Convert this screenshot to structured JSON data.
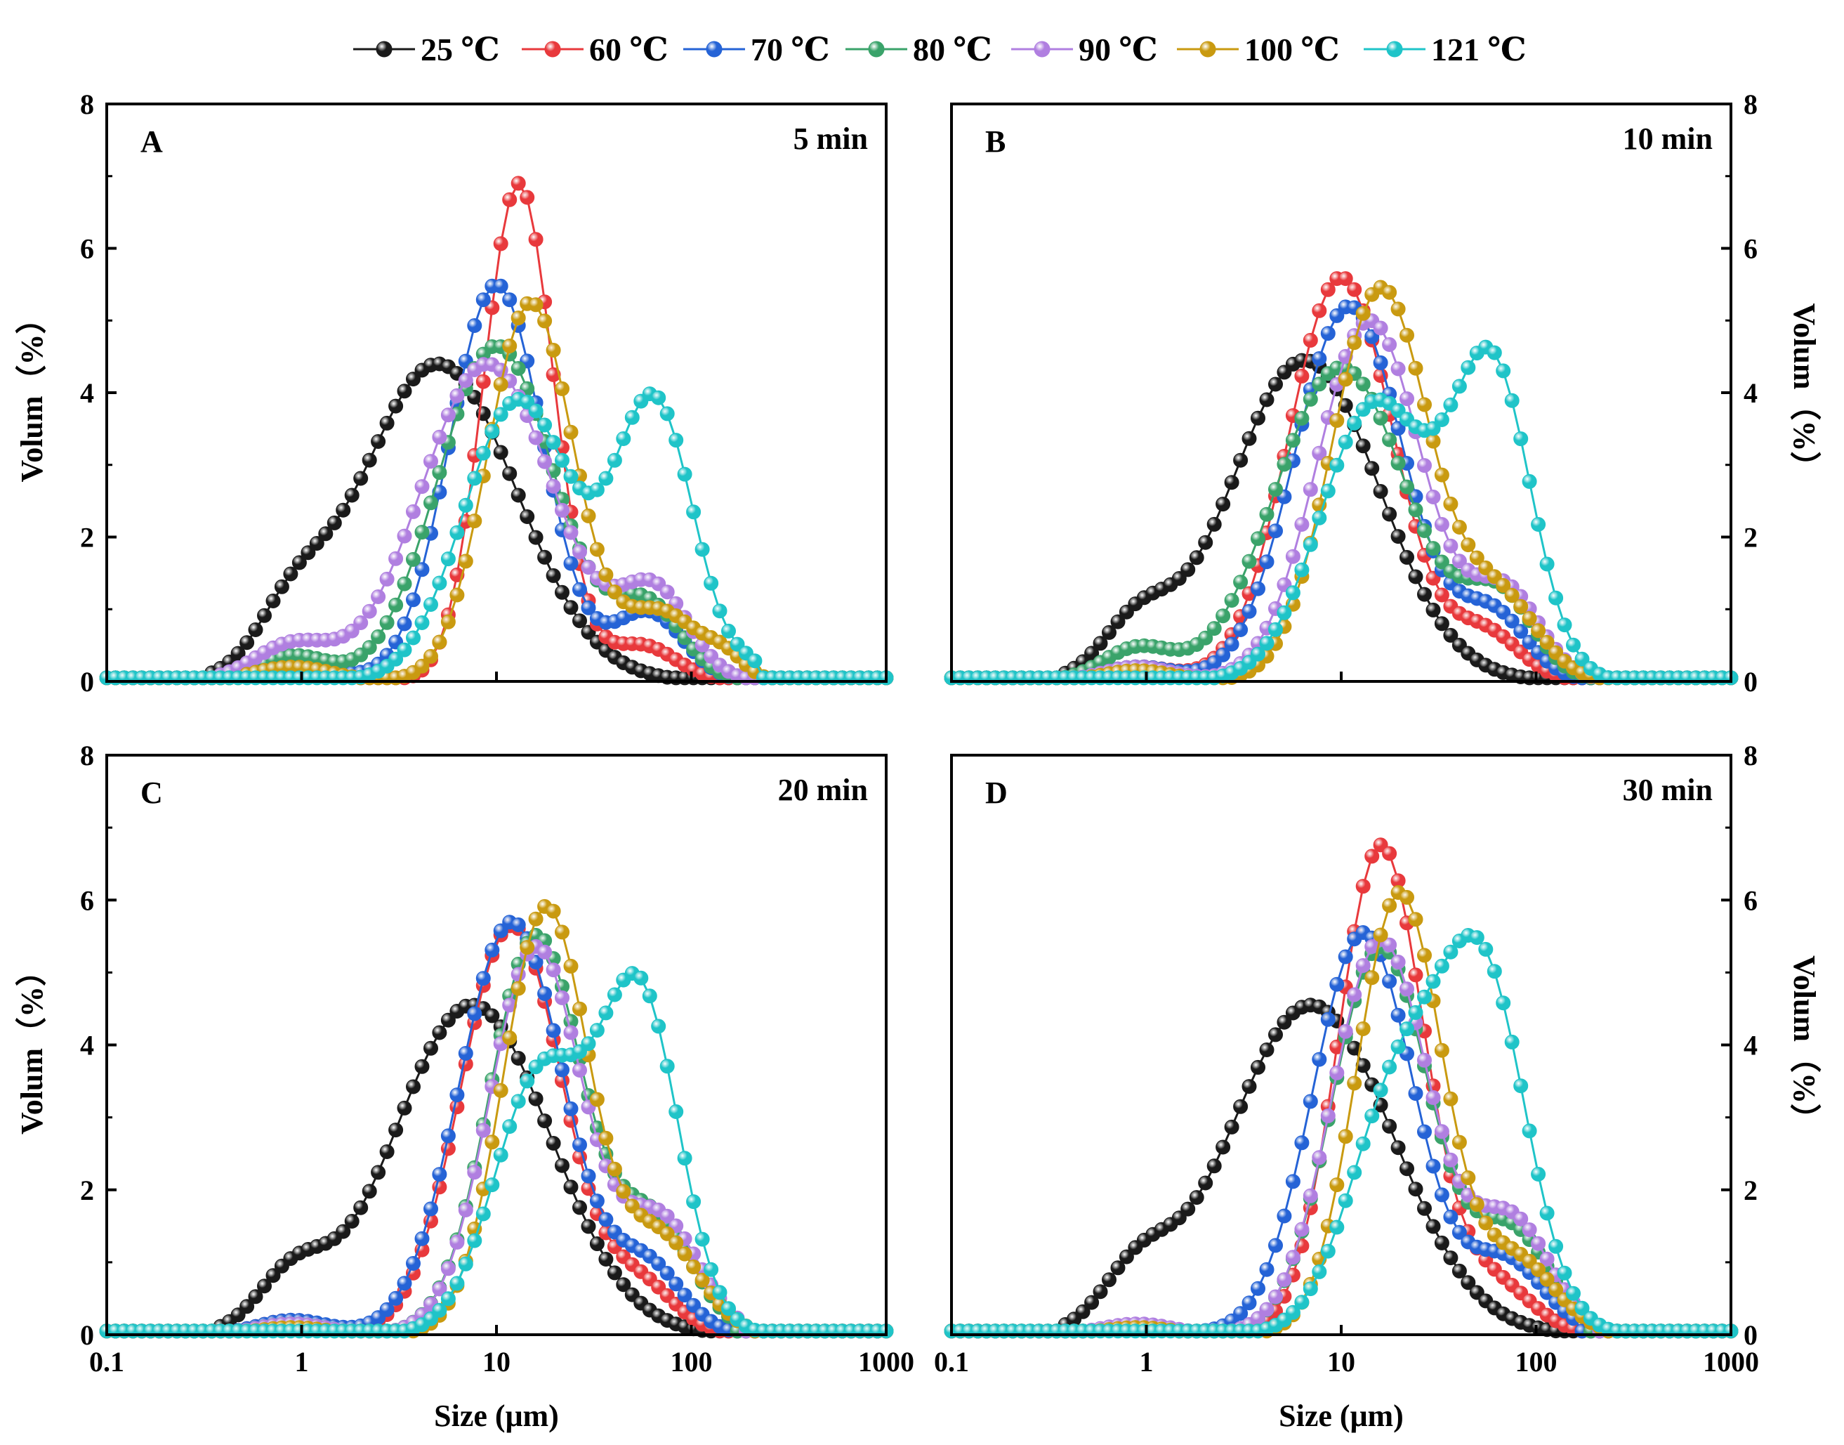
{
  "series_meta": [
    {
      "name": "25 ℃",
      "color": "#1a1a1a"
    },
    {
      "name": "60 ℃",
      "color": "#e8393c"
    },
    {
      "name": "70 ℃",
      "color": "#2563d6"
    },
    {
      "name": "80 ℃",
      "color": "#3aa36a"
    },
    {
      "name": "90 ℃",
      "color": "#b07fe0"
    },
    {
      "name": "100 ℃",
      "color": "#c99a10"
    },
    {
      "name": "121 ℃",
      "color": "#1fc4c8"
    }
  ],
  "chart_data": [
    {
      "type": "line",
      "panel": "A",
      "time_label": "5 min",
      "xlabel": "",
      "ylabel": "Volum（%）",
      "xscale": "log",
      "xlim": [
        0.1,
        1000
      ],
      "ylim": [
        0,
        8
      ],
      "x_ticks": [],
      "y_ticks": [
        "0",
        "2",
        "4",
        "6",
        "8"
      ],
      "y_axis_side": "left",
      "series": [
        {
          "name": "25 ℃",
          "peaks": [
            [
              0.9,
              0.75,
              0.18
            ],
            [
              5.0,
              4.4,
              0.4
            ]
          ],
          "min": 0.33,
          "max": 130
        },
        {
          "name": "60 ℃",
          "peaks": [
            [
              0.9,
              0.25,
              0.18
            ],
            [
              13.0,
              6.9,
              0.18
            ],
            [
              55,
              0.5,
              0.18
            ]
          ],
          "min": 0.45,
          "max": 130
        },
        {
          "name": "70 ℃",
          "peaks": [
            [
              0.9,
              0.3,
              0.18
            ],
            [
              10.0,
              5.5,
              0.24
            ],
            [
              60,
              0.95,
              0.18
            ]
          ],
          "min": 0.45,
          "max": 160
        },
        {
          "name": "80 ℃",
          "peaks": [
            [
              0.9,
              0.35,
              0.18
            ],
            [
              10.0,
              4.65,
              0.3
            ],
            [
              60,
              1.0,
              0.18
            ]
          ],
          "min": 0.45,
          "max": 160
        },
        {
          "name": "90 ℃",
          "peaks": [
            [
              0.9,
              0.5,
              0.2
            ],
            [
              9.0,
              4.4,
              0.34
            ],
            [
              65,
              1.2,
              0.18
            ]
          ],
          "min": 0.38,
          "max": 180
        },
        {
          "name": "100 ℃",
          "peaks": [
            [
              0.9,
              0.2,
              0.2
            ],
            [
              15.0,
              5.25,
              0.22
            ],
            [
              70,
              0.95,
              0.2
            ],
            [
              150,
              0.25,
              0.1
            ]
          ],
          "min": 0.5,
          "max": 320
        },
        {
          "name": "121 ℃",
          "peaks": [
            [
              13.0,
              3.9,
              0.28
            ],
            [
              65,
              3.8,
              0.2
            ],
            [
              200,
              0.15,
              0.08
            ]
          ],
          "min": 1.3,
          "max": 220
        }
      ]
    },
    {
      "type": "line",
      "panel": "B",
      "time_label": "10 min",
      "xlabel": "",
      "ylabel": "Volum（%）",
      "xscale": "log",
      "xlim": [
        0.1,
        1000
      ],
      "ylim": [
        0,
        8
      ],
      "x_ticks": [],
      "y_ticks": [
        "0",
        "2",
        "4",
        "6",
        "8"
      ],
      "y_axis_side": "right",
      "series": [
        {
          "name": "25 ℃",
          "peaks": [
            [
              0.9,
              0.75,
              0.18
            ],
            [
              6.5,
              4.45,
              0.38
            ]
          ],
          "min": 0.35,
          "max": 115
        },
        {
          "name": "60 ℃",
          "peaks": [
            [
              0.9,
              0.2,
              0.18
            ],
            [
              10.0,
              5.6,
              0.27
            ],
            [
              55,
              0.65,
              0.18
            ]
          ],
          "min": 0.45,
          "max": 140
        },
        {
          "name": "70 ℃",
          "peaks": [
            [
              0.9,
              0.2,
              0.18
            ],
            [
              11.0,
              5.2,
              0.28
            ],
            [
              60,
              0.9,
              0.18
            ]
          ],
          "min": 0.45,
          "max": 170
        },
        {
          "name": "80 ℃",
          "peaks": [
            [
              0.9,
              0.45,
              0.18
            ],
            [
              10.0,
              4.35,
              0.34
            ],
            [
              65,
              1.1,
              0.18
            ]
          ],
          "min": 0.38,
          "max": 190
        },
        {
          "name": "90 ℃",
          "peaks": [
            [
              0.9,
              0.2,
              0.18
            ],
            [
              14.0,
              5.0,
              0.27
            ],
            [
              70,
              1.2,
              0.18
            ]
          ],
          "min": 0.45,
          "max": 210
        },
        {
          "name": "100 ℃",
          "peaks": [
            [
              0.9,
              0.15,
              0.18
            ],
            [
              16.0,
              5.45,
              0.25
            ],
            [
              65,
              1.1,
              0.2
            ]
          ],
          "min": 0.5,
          "max": 240
        },
        {
          "name": "121 ℃",
          "peaks": [
            [
              15.0,
              3.85,
              0.28
            ],
            [
              60,
              4.2,
              0.2
            ]
          ],
          "min": 1.3,
          "max": 240
        }
      ]
    },
    {
      "type": "line",
      "panel": "C",
      "time_label": "20 min",
      "xlabel": "Size (μm)",
      "ylabel": "Volum（%）",
      "xscale": "log",
      "xlim": [
        0.1,
        1000
      ],
      "ylim": [
        0,
        8
      ],
      "x_ticks": [
        "0.1",
        "1",
        "10",
        "100",
        "1000"
      ],
      "y_ticks": [
        "0",
        "2",
        "4",
        "6",
        "8"
      ],
      "y_axis_side": "left",
      "series": [
        {
          "name": "25 ℃",
          "peaks": [
            [
              0.9,
              0.75,
              0.18
            ],
            [
              7.5,
              4.55,
              0.4
            ]
          ],
          "min": 0.35,
          "max": 120
        },
        {
          "name": "60 ℃",
          "peaks": [
            [
              0.9,
              0.2,
              0.18
            ],
            [
              12.0,
              5.65,
              0.26
            ],
            [
              55,
              0.65,
              0.18
            ]
          ],
          "min": 0.45,
          "max": 140
        },
        {
          "name": "70 ℃",
          "peaks": [
            [
              0.9,
              0.2,
              0.18
            ],
            [
              12.0,
              5.7,
              0.27
            ],
            [
              60,
              0.9,
              0.18
            ]
          ],
          "min": 0.45,
          "max": 170
        },
        {
          "name": "80 ℃",
          "peaks": [
            [
              0.9,
              0.15,
              0.18
            ],
            [
              16.0,
              5.5,
              0.24
            ],
            [
              65,
              1.5,
              0.2
            ]
          ],
          "min": 0.5,
          "max": 170
        },
        {
          "name": "90 ℃",
          "peaks": [
            [
              0.9,
              0.15,
              0.18
            ],
            [
              16.0,
              5.35,
              0.24
            ],
            [
              70,
              1.55,
              0.2
            ]
          ],
          "min": 0.5,
          "max": 180
        },
        {
          "name": "100 ℃",
          "peaks": [
            [
              0.9,
              0.1,
              0.18
            ],
            [
              18.0,
              5.9,
              0.22
            ],
            [
              70,
              1.3,
              0.2
            ]
          ],
          "min": 0.55,
          "max": 200
        },
        {
          "name": "121 ℃",
          "peaks": [
            [
              17.0,
              3.6,
              0.24
            ],
            [
              55,
              4.55,
              0.2
            ]
          ],
          "min": 1.3,
          "max": 260
        }
      ]
    },
    {
      "type": "line",
      "panel": "D",
      "time_label": "30 min",
      "xlabel": "Size (μm)",
      "ylabel": "Volum（%）",
      "xscale": "log",
      "xlim": [
        0.1,
        1000
      ],
      "ylim": [
        0,
        8
      ],
      "x_ticks": [
        "0.1",
        "1",
        "10",
        "100",
        "1000"
      ],
      "y_ticks": [
        "0",
        "2",
        "4",
        "6",
        "8"
      ],
      "y_axis_side": "right",
      "series": [
        {
          "name": "25 ℃",
          "peaks": [
            [
              0.9,
              0.75,
              0.18
            ],
            [
              7.0,
              4.55,
              0.42
            ]
          ],
          "min": 0.38,
          "max": 150
        },
        {
          "name": "60 ℃",
          "peaks": [
            [
              0.9,
              0.1,
              0.18
            ],
            [
              16.0,
              6.75,
              0.22
            ],
            [
              60,
              0.7,
              0.2
            ]
          ],
          "min": 0.5,
          "max": 160
        },
        {
          "name": "70 ℃",
          "peaks": [
            [
              0.9,
              0.1,
              0.18
            ],
            [
              13.0,
              5.55,
              0.26
            ],
            [
              70,
              1.0,
              0.2
            ]
          ],
          "min": 0.5,
          "max": 170
        },
        {
          "name": "80 ℃",
          "peaks": [
            [
              0.9,
              0.1,
              0.18
            ],
            [
              16.0,
              5.35,
              0.25
            ],
            [
              75,
              1.4,
              0.2
            ]
          ],
          "min": 0.5,
          "max": 190
        },
        {
          "name": "90 ℃",
          "peaks": [
            [
              0.9,
              0.15,
              0.18
            ],
            [
              16.0,
              5.45,
              0.25
            ],
            [
              75,
              1.55,
              0.2
            ]
          ],
          "min": 0.5,
          "max": 200
        },
        {
          "name": "100 ℃",
          "peaks": [
            [
              0.9,
              0.1,
              0.18
            ],
            [
              20.0,
              6.1,
              0.22
            ],
            [
              80,
              1.0,
              0.2
            ]
          ],
          "min": 0.55,
          "max": 220
        },
        {
          "name": "121 ℃",
          "peaks": [
            [
              20.0,
              3.4,
              0.25
            ],
            [
              55,
              4.6,
              0.22
            ]
          ],
          "min": 1.5,
          "max": 280
        }
      ]
    }
  ]
}
